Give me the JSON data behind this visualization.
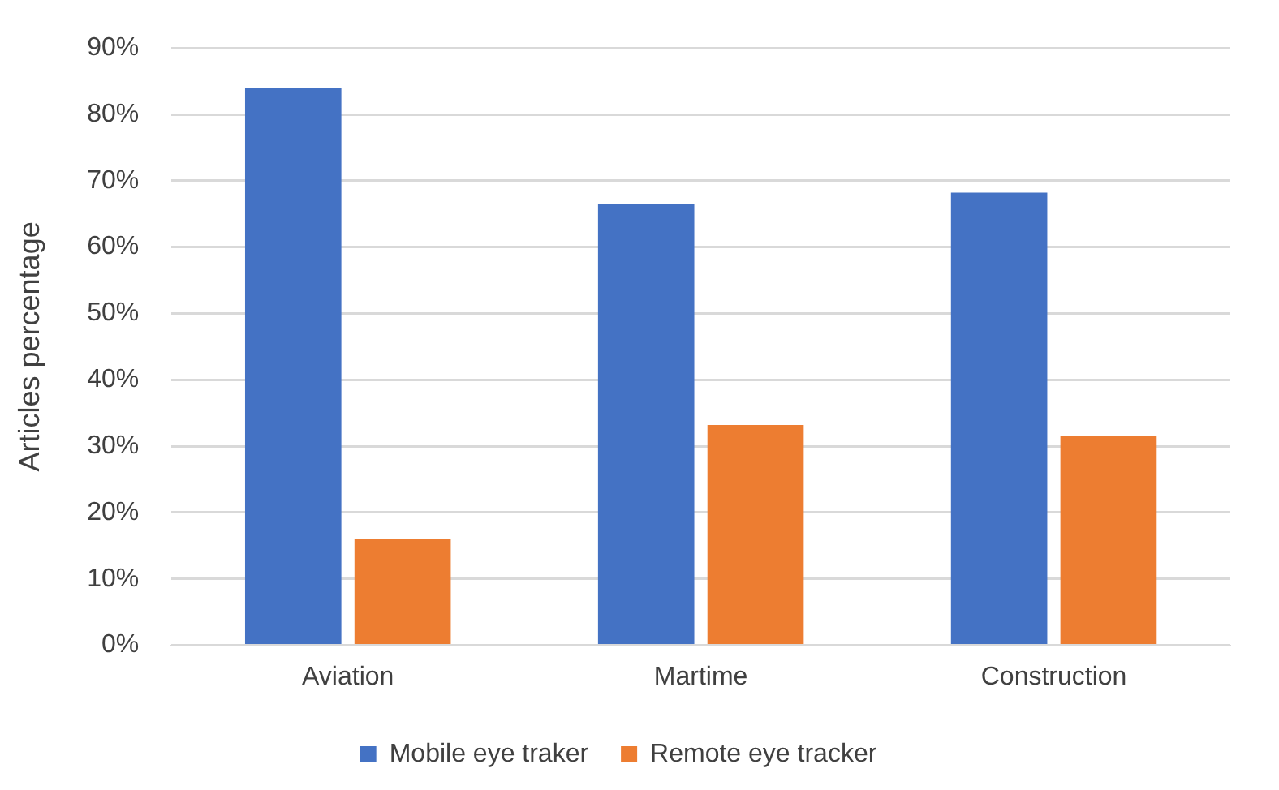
{
  "chart_data": {
    "type": "bar",
    "ylabel": "Articles percentage",
    "categories": [
      "Aviation",
      "Martime",
      "Construction"
    ],
    "series": [
      {
        "name": "Mobile eye traker",
        "color": "#4472c4",
        "values": [
          84,
          66.5,
          68.2
        ]
      },
      {
        "name": "Remote eye tracker",
        "color": "#ed7d31",
        "values": [
          16,
          33.2,
          31.5
        ]
      }
    ],
    "ylim": [
      0,
      90
    ],
    "yticks": [
      {
        "value": 0,
        "label": "0%"
      },
      {
        "value": 10,
        "label": "10%"
      },
      {
        "value": 20,
        "label": "20%"
      },
      {
        "value": 30,
        "label": "30%"
      },
      {
        "value": 40,
        "label": "40%"
      },
      {
        "value": 50,
        "label": "50%"
      },
      {
        "value": 60,
        "label": "60%"
      },
      {
        "value": 70,
        "label": "70%"
      },
      {
        "value": 80,
        "label": "80%"
      },
      {
        "value": 90,
        "label": "90%"
      }
    ],
    "grid": "y",
    "legend": "bottom"
  }
}
